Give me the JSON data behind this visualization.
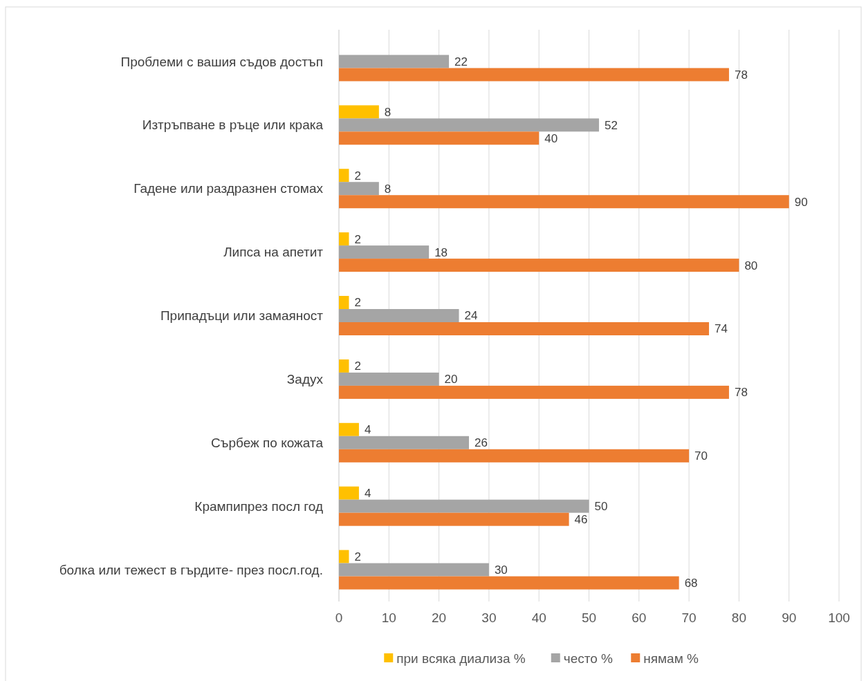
{
  "chart_data": {
    "type": "bar",
    "orientation": "horizontal",
    "categories": [
      "Проблеми с вашия съдов достъп",
      "Изтръпване в ръце или крака",
      "Гадене или раздразнен стомах",
      "Липса на апетит",
      "Припадъци или замаяност",
      "Задух",
      "Сърбеж по кожата",
      "Крампипрез посл год",
      "болка или тежест в гърдите- през посл.год."
    ],
    "series": [
      {
        "name": "при всяка диализа %",
        "color": "#ffc000",
        "values": [
          null,
          8,
          2,
          2,
          2,
          2,
          4,
          4,
          2
        ]
      },
      {
        "name": "често %",
        "color": "#a5a5a5",
        "values": [
          22,
          52,
          8,
          18,
          24,
          20,
          26,
          50,
          30
        ]
      },
      {
        "name": "нямам %",
        "color": "#ed7d31",
        "values": [
          78,
          40,
          90,
          80,
          74,
          78,
          70,
          46,
          68
        ]
      }
    ],
    "xlim": [
      0,
      100
    ],
    "xticks": [
      0,
      10,
      20,
      30,
      40,
      50,
      60,
      70,
      80,
      90,
      100
    ],
    "grid": "x",
    "legend": "bottom",
    "data_labels": true
  }
}
